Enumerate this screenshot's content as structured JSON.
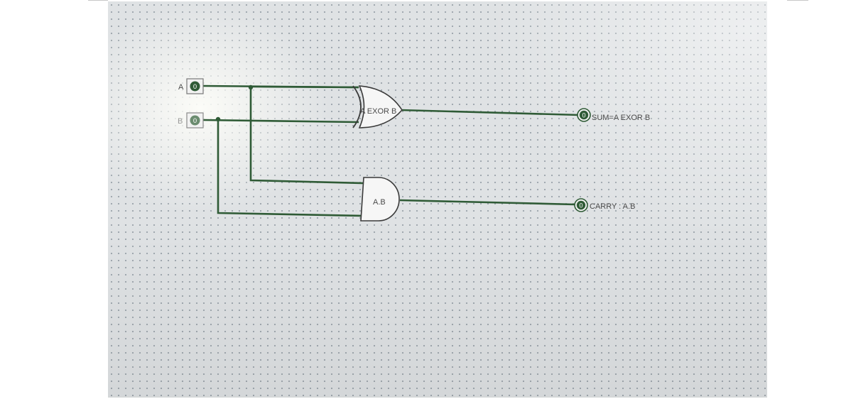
{
  "circuit": {
    "inputs": [
      {
        "label": "A",
        "value": "0"
      },
      {
        "label": "B",
        "value": "0"
      }
    ],
    "gates": [
      {
        "type": "XOR",
        "label": "A EXOR B"
      },
      {
        "type": "AND",
        "label": "A.B"
      }
    ],
    "outputs": [
      {
        "value": "0",
        "label": "SUM=A EXOR B"
      },
      {
        "value": "0",
        "label": "CARRY : A.B"
      }
    ]
  },
  "colors": {
    "wire": "#2f5b36",
    "gate_outline": "#3a3a3a",
    "canvas": "#dfe2e4"
  }
}
